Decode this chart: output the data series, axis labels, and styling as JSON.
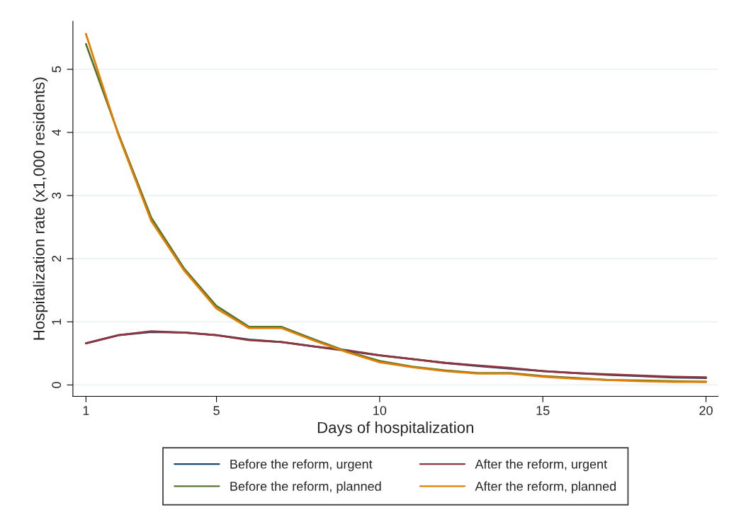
{
  "chart_data": {
    "type": "line",
    "xlabel": "Days of hospitalization",
    "ylabel": "Hospitalization rate (x1,000 residents)",
    "x": [
      1,
      2,
      3,
      4,
      5,
      6,
      7,
      8,
      9,
      10,
      11,
      12,
      13,
      14,
      15,
      16,
      17,
      18,
      19,
      20
    ],
    "series": [
      {
        "name": "Before the reform, urgent",
        "color": "#1a476f",
        "values": [
          0.66,
          0.79,
          0.84,
          0.83,
          0.79,
          0.72,
          0.68,
          0.61,
          0.54,
          0.47,
          0.41,
          0.35,
          0.3,
          0.26,
          0.22,
          0.19,
          0.16,
          0.14,
          0.12,
          0.11
        ]
      },
      {
        "name": "After the reform, urgent",
        "color": "#90353b",
        "values": [
          0.66,
          0.79,
          0.85,
          0.83,
          0.79,
          0.71,
          0.68,
          0.61,
          0.55,
          0.47,
          0.41,
          0.35,
          0.31,
          0.27,
          0.22,
          0.19,
          0.17,
          0.15,
          0.13,
          0.12
        ]
      },
      {
        "name": "Before the reform, planned",
        "color": "#55752f",
        "values": [
          5.4,
          3.97,
          2.65,
          1.85,
          1.25,
          0.92,
          0.92,
          0.72,
          0.53,
          0.38,
          0.29,
          0.23,
          0.19,
          0.19,
          0.14,
          0.11,
          0.08,
          0.07,
          0.06,
          0.05
        ]
      },
      {
        "name": "After the reform, planned",
        "color": "#e37e00",
        "values": [
          5.56,
          3.95,
          2.6,
          1.82,
          1.21,
          0.9,
          0.9,
          0.7,
          0.52,
          0.36,
          0.28,
          0.22,
          0.18,
          0.18,
          0.13,
          0.1,
          0.08,
          0.06,
          0.05,
          0.05
        ]
      }
    ],
    "xlim": [
      0.6,
      20.37
    ],
    "xticks": [
      1,
      5,
      10,
      15,
      20
    ],
    "ylim": [
      -0.18,
      5.76
    ],
    "yticks": [
      0,
      1,
      2,
      3,
      4,
      5
    ],
    "grid": "y",
    "legend": "bottom",
    "marker": "none",
    "line_style": "solid"
  }
}
